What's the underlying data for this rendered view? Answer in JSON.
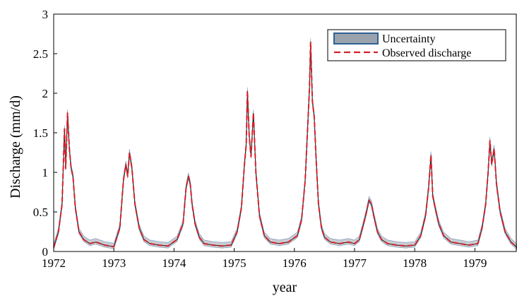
{
  "chart_data": {
    "type": "line",
    "title": "",
    "xlabel": "year",
    "ylabel": "Discharge (mm/d)",
    "xlim": [
      1972,
      1979.7
    ],
    "ylim": [
      0,
      3
    ],
    "x_ticks": [
      1972,
      1973,
      1974,
      1975,
      1976,
      1977,
      1978,
      1979
    ],
    "y_ticks": [
      0,
      0.5,
      1,
      1.5,
      2,
      2.5,
      3
    ],
    "x_tick_labels": [
      "1972",
      "1973",
      "1974",
      "1975",
      "1976",
      "1977",
      "1978",
      "1979"
    ],
    "y_tick_labels": [
      "0",
      "0.5",
      "1",
      "1.5",
      "2",
      "2.5",
      "3"
    ],
    "grid": false,
    "legend_position": "top-right",
    "legend": [
      "Uncertainty",
      "Observed discharge"
    ],
    "colors": {
      "uncertainty_fill": "#9aa3ad",
      "uncertainty_edge": "#2f5f95",
      "observed": "#d4202a",
      "observed_alt": "#1a1a1a"
    },
    "series": [
      {
        "name": "Observed discharge",
        "style": "dashed",
        "x": [
          1972.0,
          1972.08,
          1972.14,
          1972.18,
          1972.2,
          1972.23,
          1972.26,
          1972.29,
          1972.32,
          1972.36,
          1972.42,
          1972.5,
          1972.6,
          1972.7,
          1972.85,
          1973.0,
          1973.1,
          1973.16,
          1973.2,
          1973.23,
          1973.26,
          1973.3,
          1973.35,
          1973.42,
          1973.5,
          1973.6,
          1973.75,
          1973.9,
          1974.05,
          1974.15,
          1974.2,
          1974.24,
          1974.27,
          1974.3,
          1974.35,
          1974.42,
          1974.5,
          1974.65,
          1974.8,
          1974.95,
          1975.05,
          1975.12,
          1975.17,
          1975.2,
          1975.22,
          1975.25,
          1975.28,
          1975.32,
          1975.36,
          1975.42,
          1975.5,
          1975.6,
          1975.75,
          1975.9,
          1976.05,
          1976.12,
          1976.18,
          1976.22,
          1976.25,
          1976.27,
          1976.3,
          1976.33,
          1976.36,
          1976.4,
          1976.45,
          1976.5,
          1976.6,
          1976.75,
          1976.9,
          1977.0,
          1977.08,
          1977.15,
          1977.2,
          1977.24,
          1977.28,
          1977.32,
          1977.38,
          1977.45,
          1977.55,
          1977.7,
          1977.85,
          1978.0,
          1978.1,
          1978.18,
          1978.23,
          1978.27,
          1978.3,
          1978.34,
          1978.4,
          1978.48,
          1978.6,
          1978.75,
          1978.9,
          1979.05,
          1979.12,
          1979.18,
          1979.22,
          1979.25,
          1979.28,
          1979.32,
          1979.36,
          1979.42,
          1979.5,
          1979.6,
          1979.7
        ],
        "values": [
          0.05,
          0.25,
          0.6,
          1.55,
          1.05,
          1.75,
          1.3,
          1.05,
          0.95,
          0.55,
          0.25,
          0.15,
          0.1,
          0.12,
          0.08,
          0.06,
          0.3,
          0.9,
          1.1,
          0.95,
          1.25,
          1.05,
          0.6,
          0.3,
          0.15,
          0.1,
          0.08,
          0.07,
          0.15,
          0.35,
          0.8,
          0.95,
          0.85,
          0.6,
          0.35,
          0.18,
          0.1,
          0.08,
          0.07,
          0.08,
          0.25,
          0.55,
          1.1,
          1.35,
          2.03,
          1.45,
          1.2,
          1.75,
          1.0,
          0.45,
          0.2,
          0.12,
          0.1,
          0.12,
          0.2,
          0.4,
          0.9,
          1.55,
          2.05,
          2.65,
          1.9,
          1.7,
          1.2,
          0.6,
          0.3,
          0.18,
          0.12,
          0.1,
          0.12,
          0.1,
          0.15,
          0.35,
          0.5,
          0.65,
          0.6,
          0.45,
          0.25,
          0.15,
          0.1,
          0.08,
          0.07,
          0.08,
          0.2,
          0.45,
          0.8,
          1.22,
          0.7,
          0.55,
          0.35,
          0.2,
          0.12,
          0.1,
          0.08,
          0.1,
          0.3,
          0.6,
          1.0,
          1.4,
          1.1,
          1.3,
          0.85,
          0.5,
          0.25,
          0.12,
          0.05
        ]
      }
    ]
  }
}
